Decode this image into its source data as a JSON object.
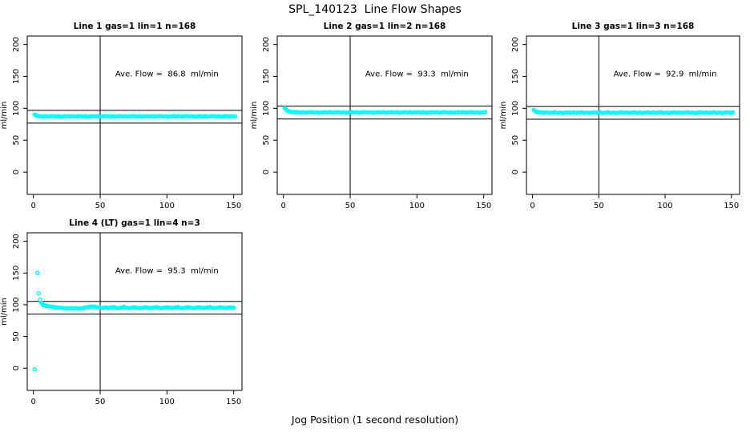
{
  "figure": {
    "title": "SPL_140123  Line Flow Shapes",
    "xlabel": "Jog Position (1 second resolution)",
    "background": "#FFFFFF",
    "axis_color": "#000000",
    "point_color": "#00FFFF"
  },
  "chart_data": [
    {
      "type": "scatter",
      "title": "Line 1 gas=1 lin=1 n=168",
      "ylabel": "ml/min",
      "annotation": "Ave. Flow =  86.8  ml/min",
      "ave_flow": 86.8,
      "annotation_xy": [
        100,
        150
      ],
      "xticks": [
        0,
        50,
        100,
        150
      ],
      "yticks": [
        0,
        50,
        100,
        150,
        200
      ],
      "xlim": [
        -4.6,
        156.2
      ],
      "ylim": [
        -35,
        213.4
      ],
      "vline_x": 50,
      "hlines": [
        96.8,
        76.8
      ],
      "x": [
        1,
        2,
        3,
        4,
        5,
        7,
        9,
        11,
        13,
        15,
        17,
        19,
        21,
        23,
        25,
        27,
        29,
        31,
        33,
        35,
        37,
        39,
        41,
        43,
        45,
        47,
        49,
        51,
        53,
        55,
        57,
        59,
        61,
        63,
        65,
        67,
        69,
        71,
        73,
        75,
        77,
        79,
        81,
        83,
        85,
        87,
        89,
        91,
        93,
        95,
        97,
        99,
        101,
        103,
        105,
        107,
        109,
        111,
        113,
        115,
        117,
        119,
        121,
        123,
        125,
        127,
        129,
        131,
        133,
        135,
        137,
        139,
        141,
        143,
        145,
        147,
        149,
        151
      ],
      "y": [
        90.3,
        88.9,
        88.1,
        87.6,
        87.7,
        87.1,
        87.6,
        86.9,
        87.4,
        87.8,
        87.0,
        87.5,
        86.8,
        87.3,
        87.7,
        87.1,
        87.6,
        86.9,
        87.4,
        87.8,
        87.0,
        87.5,
        86.8,
        87.3,
        87.7,
        87.1,
        87.6,
        86.9,
        87.4,
        87.8,
        87.0,
        87.5,
        86.8,
        87.3,
        87.7,
        87.1,
        87.6,
        86.9,
        87.4,
        87.8,
        87.0,
        87.5,
        86.8,
        87.3,
        87.7,
        87.1,
        87.6,
        86.9,
        87.4,
        87.8,
        87.0,
        87.5,
        86.8,
        87.3,
        87.7,
        87.1,
        87.6,
        86.9,
        87.4,
        87.8,
        87.0,
        87.5,
        86.8,
        87.3,
        87.7,
        87.1,
        87.6,
        86.9,
        87.4,
        87.8,
        87.0,
        87.5,
        86.8,
        87.3,
        87.7,
        87.1,
        87.6,
        86.9
      ]
    },
    {
      "type": "scatter",
      "title": "Line 2 gas=1 lin=2 n=168",
      "ylabel": "ml/min",
      "annotation": "Ave. Flow =  93.3  ml/min",
      "ave_flow": 93.3,
      "annotation_xy": [
        100,
        150
      ],
      "xticks": [
        0,
        50,
        100,
        150
      ],
      "yticks": [
        0,
        50,
        100,
        150,
        200
      ],
      "xlim": [
        -4.6,
        156.2
      ],
      "ylim": [
        -35,
        213.4
      ],
      "vline_x": 50,
      "hlines": [
        103.3,
        83.3
      ],
      "x": [
        1,
        2,
        3,
        4,
        5,
        6,
        7,
        8,
        9,
        10,
        11,
        13,
        15,
        17,
        19,
        21,
        23,
        25,
        27,
        29,
        31,
        33,
        35,
        37,
        39,
        41,
        43,
        45,
        47,
        49,
        51,
        53,
        55,
        57,
        59,
        61,
        63,
        65,
        67,
        69,
        71,
        73,
        75,
        77,
        79,
        81,
        83,
        85,
        87,
        89,
        91,
        93,
        95,
        97,
        99,
        101,
        103,
        105,
        107,
        109,
        111,
        113,
        115,
        117,
        119,
        121,
        123,
        125,
        127,
        129,
        131,
        133,
        135,
        137,
        139,
        141,
        143,
        145,
        147,
        149,
        151
      ],
      "y": [
        100.2,
        98.0,
        96.4,
        95.4,
        94.8,
        94.4,
        94.1,
        93.9,
        93.7,
        93.6,
        93.9,
        93.3,
        93.8,
        93.1,
        93.6,
        94.0,
        93.2,
        93.7,
        93.0,
        93.5,
        93.9,
        93.3,
        93.8,
        93.1,
        93.6,
        94.0,
        93.2,
        93.7,
        93.0,
        93.5,
        93.9,
        93.3,
        93.8,
        93.1,
        93.6,
        94.0,
        93.2,
        93.7,
        93.0,
        93.5,
        93.9,
        93.3,
        93.8,
        93.1,
        93.6,
        94.0,
        93.2,
        93.7,
        93.0,
        93.5,
        93.9,
        93.3,
        93.8,
        93.1,
        93.6,
        94.0,
        93.2,
        93.7,
        93.0,
        93.5,
        93.9,
        93.3,
        93.8,
        93.1,
        93.6,
        94.0,
        93.2,
        93.7,
        93.0,
        93.5,
        93.9,
        93.3,
        93.8,
        93.1,
        93.6,
        94.0,
        93.2,
        93.7,
        93.0,
        93.5,
        93.9
      ]
    },
    {
      "type": "scatter",
      "title": "Line 3 gas=1 lin=3 n=168",
      "ylabel": "ml/min",
      "annotation": "Ave. Flow =  92.9  ml/min",
      "ave_flow": 92.9,
      "annotation_xy": [
        100,
        150
      ],
      "xticks": [
        0,
        50,
        100,
        150
      ],
      "yticks": [
        0,
        50,
        100,
        150,
        200
      ],
      "xlim": [
        -4.6,
        156.2
      ],
      "ylim": [
        -35,
        213.4
      ],
      "vline_x": 50,
      "hlines": [
        102.9,
        82.9
      ],
      "x": [
        1,
        2,
        3,
        4,
        5,
        6,
        7,
        9,
        11,
        13,
        15,
        17,
        19,
        21,
        23,
        25,
        27,
        29,
        31,
        33,
        35,
        37,
        39,
        41,
        43,
        45,
        47,
        49,
        51,
        53,
        55,
        57,
        59,
        61,
        63,
        65,
        67,
        69,
        71,
        73,
        75,
        77,
        79,
        81,
        83,
        85,
        87,
        89,
        91,
        93,
        95,
        97,
        99,
        101,
        103,
        105,
        107,
        109,
        111,
        113,
        115,
        117,
        119,
        121,
        123,
        125,
        127,
        129,
        131,
        133,
        135,
        137,
        139,
        141,
        143,
        145,
        147,
        149,
        151
      ],
      "y": [
        97.2,
        95.6,
        94.6,
        94.0,
        93.7,
        93.5,
        93.6,
        93.0,
        93.5,
        92.8,
        93.3,
        93.7,
        92.9,
        93.4,
        92.7,
        93.2,
        93.6,
        93.0,
        93.5,
        92.8,
        93.3,
        93.7,
        92.9,
        93.4,
        92.7,
        93.2,
        93.6,
        93.0,
        93.5,
        92.8,
        93.3,
        93.7,
        92.9,
        93.4,
        92.7,
        93.2,
        93.6,
        93.0,
        93.5,
        92.8,
        93.3,
        93.7,
        92.9,
        93.4,
        92.7,
        93.2,
        93.6,
        93.0,
        93.5,
        92.8,
        93.3,
        93.7,
        92.9,
        93.4,
        92.7,
        93.2,
        93.6,
        93.0,
        93.5,
        92.8,
        93.3,
        93.7,
        92.9,
        93.4,
        92.7,
        93.2,
        93.6,
        93.0,
        93.5,
        92.8,
        93.3,
        93.7,
        92.9,
        93.4,
        92.7,
        93.2,
        93.6,
        93.0,
        93.5
      ]
    },
    {
      "type": "scatter",
      "title": "Line 4 (LT) gas=1 lin=4 n=3",
      "ylabel": "ml/min",
      "annotation": "Ave. Flow =  95.3  ml/min",
      "ave_flow": 95.3,
      "annotation_xy": [
        100,
        150
      ],
      "xticks": [
        0,
        50,
        100,
        150
      ],
      "yticks": [
        0,
        50,
        100,
        150,
        200
      ],
      "xlim": [
        -4.6,
        156.2
      ],
      "ylim": [
        -35,
        213.4
      ],
      "vline_x": 50,
      "hlines": [
        105.3,
        85.3
      ],
      "x": [
        1,
        3,
        4,
        5,
        6,
        7,
        8,
        9,
        10,
        11,
        12,
        14,
        16,
        18,
        20,
        22,
        24,
        26,
        28,
        30,
        32,
        34,
        36,
        38,
        40,
        42,
        44,
        46,
        48,
        50,
        52,
        54,
        56,
        58,
        60,
        62,
        64,
        66,
        68,
        70,
        72,
        74,
        76,
        78,
        80,
        82,
        84,
        86,
        88,
        90,
        92,
        94,
        96,
        98,
        100,
        102,
        104,
        106,
        108,
        110,
        112,
        114,
        116,
        118,
        120,
        122,
        124,
        126,
        128,
        130,
        132,
        134,
        136,
        138,
        140,
        142,
        144,
        146,
        148,
        150
      ],
      "y": [
        -2,
        150,
        118,
        108,
        103,
        100.5,
        99.5,
        98.8,
        98.3,
        97.8,
        97.5,
        96.8,
        96.2,
        95.6,
        95.2,
        94.8,
        94.5,
        94.3,
        94.6,
        94.2,
        94.5,
        94.0,
        94.4,
        95.0,
        96.0,
        96.8,
        97.2,
        96.9,
        96.0,
        95.5,
        95.0,
        95.8,
        94.8,
        95.5,
        96.2,
        95.0,
        94.6,
        95.8,
        96.4,
        95.2,
        94.8,
        95.6,
        96.0,
        95.0,
        94.7,
        95.4,
        96.1,
        95.3,
        94.9,
        95.7,
        96.3,
        95.1,
        94.8,
        95.5,
        96.0,
        95.2,
        94.9,
        95.6,
        96.2,
        95.0,
        94.7,
        95.8,
        96.1,
        95.3,
        94.8,
        95.5,
        96.0,
        95.1,
        94.9,
        95.6,
        96.2,
        95.2,
        94.8,
        95.4,
        96.0,
        95.3,
        94.9,
        95.5,
        95.8,
        95.2
      ]
    }
  ]
}
